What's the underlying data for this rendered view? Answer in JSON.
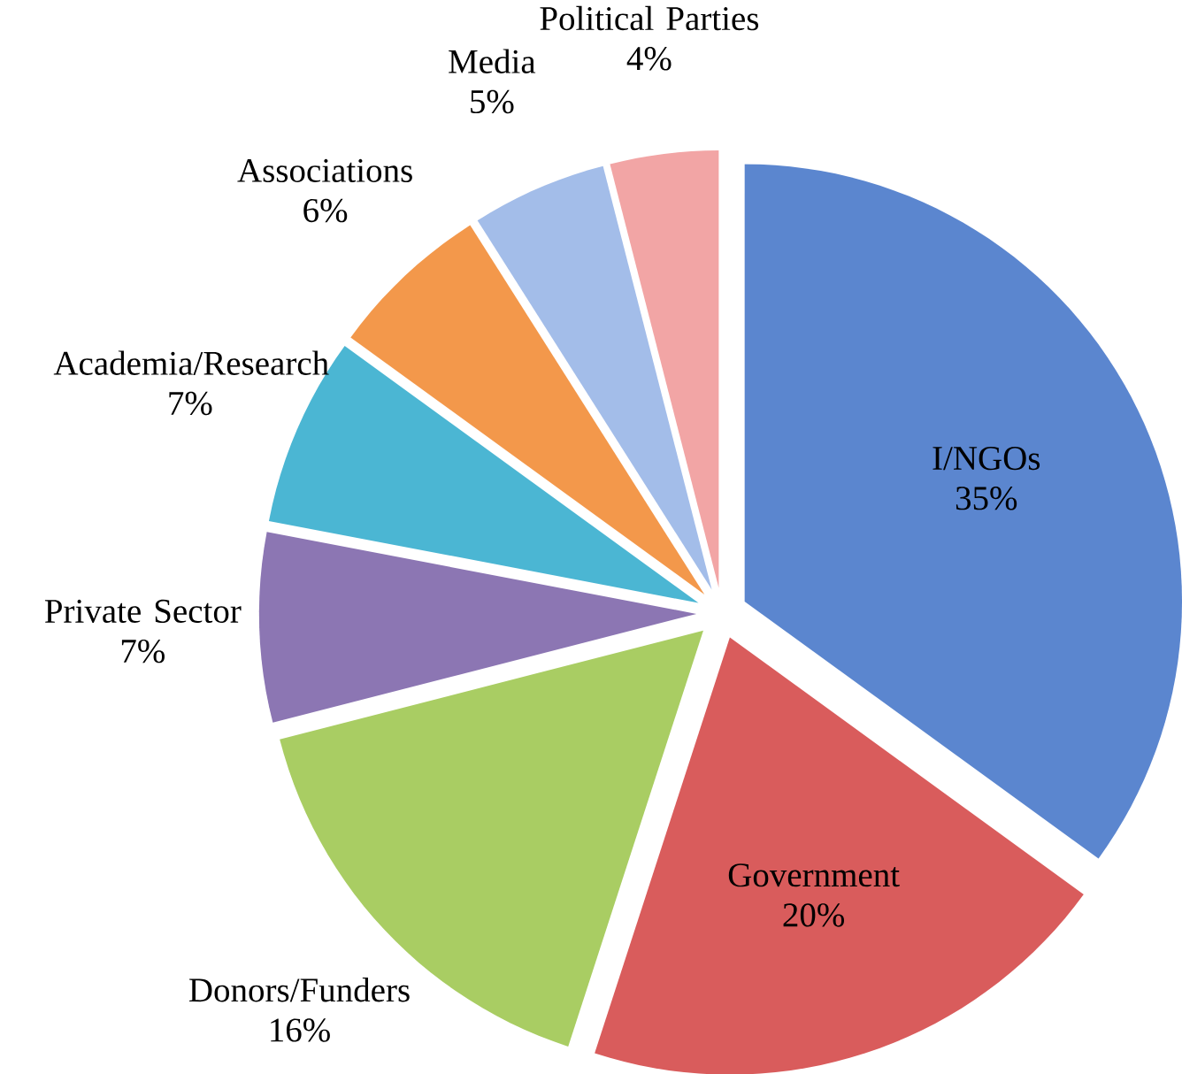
{
  "chart_data": {
    "type": "pie",
    "categories": [
      "I/NGOs",
      "Government",
      "Donors/Funders",
      "Private Sector",
      "Academia/Research",
      "Associations",
      "Media",
      "Political Parties"
    ],
    "values": [
      35,
      20,
      16,
      7,
      7,
      6,
      5,
      4
    ],
    "value_labels": [
      "35%",
      "20%",
      "16%",
      "7%",
      "7%",
      "6%",
      "5%",
      "4%"
    ],
    "colors": [
      "#5b86cf",
      "#d95c5c",
      "#a9cd63",
      "#8c76b3",
      "#4bb6d3",
      "#f3984b",
      "#a3bde9",
      "#f2a5a5"
    ]
  }
}
